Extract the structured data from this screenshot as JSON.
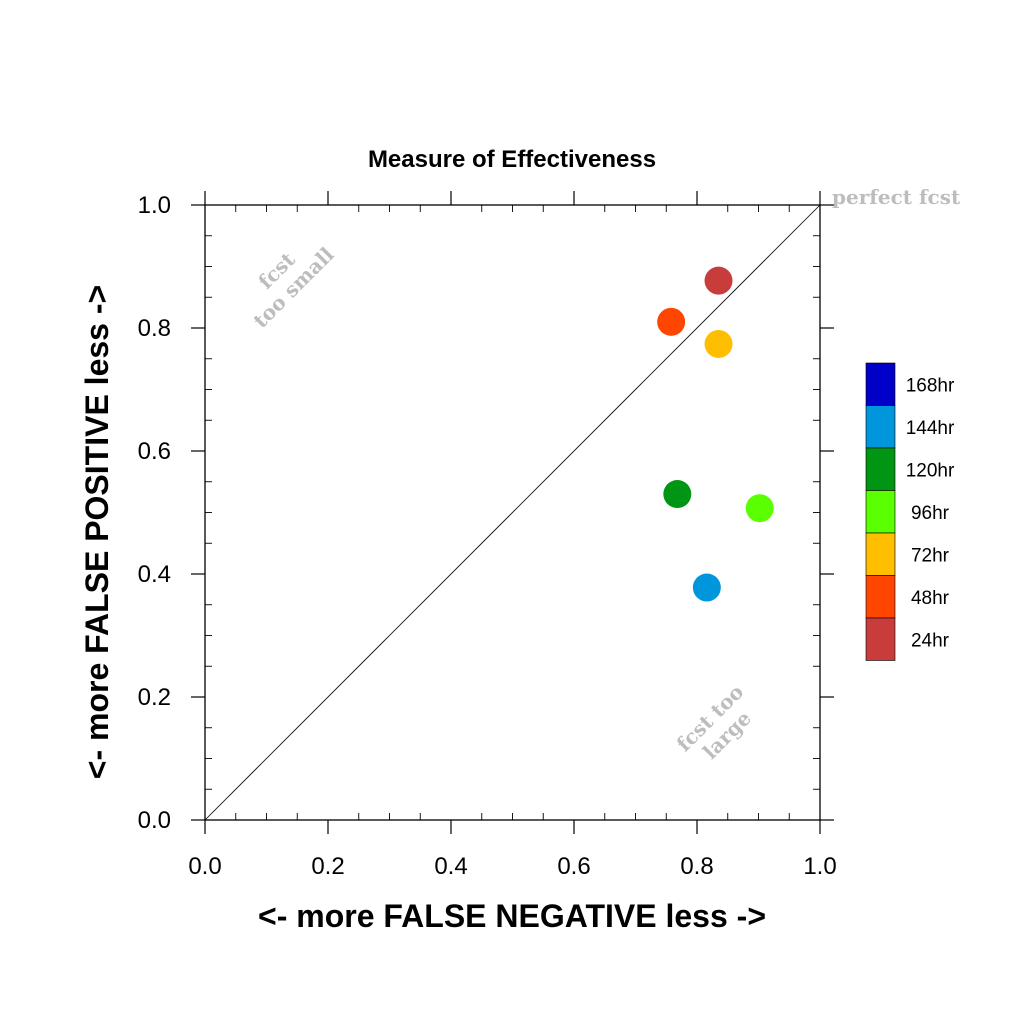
{
  "chart_data": {
    "type": "scatter",
    "title": "Measure of Effectiveness",
    "xlabel": "<- more   FALSE NEGATIVE   less ->",
    "ylabel": "<- more   FALSE POSITIVE   less ->",
    "xlim": [
      0,
      1
    ],
    "ylim": [
      0,
      1
    ],
    "x_ticks": [
      "0.0",
      "0.2",
      "0.4",
      "0.6",
      "0.8",
      "1.0"
    ],
    "y_ticks": [
      "0.0",
      "0.2",
      "0.4",
      "0.6",
      "0.8",
      "1.0"
    ],
    "grid": false,
    "reference_line": {
      "from": [
        0,
        0
      ],
      "to": [
        1,
        1
      ]
    },
    "annotations": {
      "perfect": "perfect fcst",
      "small_line1": "fcst",
      "small_line2": "too small",
      "large_line1": "fcst too",
      "large_line2": "large"
    },
    "legend": {
      "position": "right",
      "items": [
        {
          "label": "168hr",
          "color": "#0000c8"
        },
        {
          "label": "144hr",
          "color": "#0096dc"
        },
        {
          "label": "120hr",
          "color": "#009614"
        },
        {
          "label": "96hr",
          "color": "#5aff00"
        },
        {
          "label": "72hr",
          "color": "#ffbe00"
        },
        {
          "label": "48hr",
          "color": "#ff4600"
        },
        {
          "label": "24hr",
          "color": "#c83c3c"
        }
      ]
    },
    "points": [
      {
        "label": "24hr",
        "x": 0.835,
        "y": 0.877,
        "color": "#c83c3c"
      },
      {
        "label": "48hr",
        "x": 0.758,
        "y": 0.81,
        "color": "#ff4600"
      },
      {
        "label": "72hr",
        "x": 0.835,
        "y": 0.774,
        "color": "#ffbe00"
      },
      {
        "label": "120hr",
        "x": 0.768,
        "y": 0.53,
        "color": "#009614"
      },
      {
        "label": "96hr",
        "x": 0.902,
        "y": 0.507,
        "color": "#5aff00"
      },
      {
        "label": "144hr",
        "x": 0.816,
        "y": 0.378,
        "color": "#0096dc"
      }
    ]
  }
}
